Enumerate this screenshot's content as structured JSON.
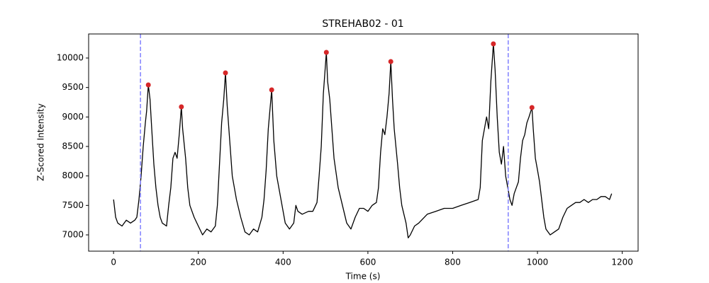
{
  "chart_data": {
    "type": "line",
    "title": "STREHAB02 - 01",
    "xlabel": "Time (s)",
    "ylabel": "Z-Scored Intensity",
    "xlim": [
      -58.8,
      1237.4
    ],
    "ylim": [
      6724,
      10408
    ],
    "xticks": [
      0,
      200,
      400,
      600,
      800,
      1000,
      1200
    ],
    "yticks": [
      7000,
      7500,
      8000,
      8500,
      9000,
      9500,
      10000
    ],
    "color": "#000000",
    "x": [
      0,
      5,
      10,
      20,
      30,
      40,
      50,
      55,
      60,
      65,
      70,
      75,
      78,
      82,
      86,
      90,
      95,
      100,
      105,
      110,
      115,
      125,
      130,
      135,
      140,
      145,
      150,
      155,
      160,
      163,
      170,
      175,
      180,
      190,
      200,
      210,
      220,
      230,
      240,
      245,
      250,
      255,
      260,
      264,
      268,
      275,
      280,
      290,
      300,
      310,
      320,
      330,
      340,
      350,
      355,
      360,
      365,
      373,
      378,
      385,
      395,
      405,
      415,
      425,
      430,
      435,
      445,
      460,
      470,
      480,
      485,
      490,
      495,
      502,
      505,
      510,
      515,
      520,
      530,
      540,
      550,
      560,
      570,
      580,
      590,
      600,
      610,
      620,
      625,
      630,
      635,
      640,
      645,
      650,
      654,
      658,
      662,
      670,
      675,
      680,
      690,
      695,
      700,
      710,
      720,
      740,
      760,
      780,
      800,
      820,
      840,
      860,
      865,
      870,
      875,
      880,
      885,
      890,
      896,
      900,
      905,
      910,
      915,
      920,
      925,
      930,
      935,
      940,
      945,
      950,
      955,
      960,
      965,
      970,
      975,
      980,
      987,
      990,
      995,
      1000,
      1005,
      1010,
      1015,
      1020,
      1030,
      1040,
      1050,
      1060,
      1070,
      1080,
      1090,
      1100,
      1110,
      1120,
      1130,
      1140,
      1150,
      1160,
      1170,
      1175
    ],
    "values": [
      7600,
      7300,
      7200,
      7150,
      7250,
      7200,
      7250,
      7300,
      7600,
      8000,
      8500,
      8900,
      9100,
      9544,
      9300,
      8800,
      8200,
      7800,
      7500,
      7300,
      7200,
      7150,
      7500,
      7800,
      8300,
      8400,
      8300,
      8700,
      9172,
      8800,
      8300,
      7800,
      7500,
      7300,
      7150,
      7000,
      7100,
      7050,
      7150,
      7500,
      8200,
      8900,
      9300,
      9748,
      9200,
      8500,
      8000,
      7600,
      7300,
      7050,
      7000,
      7100,
      7050,
      7300,
      7600,
      8100,
      8800,
      9460,
      8600,
      8000,
      7600,
      7200,
      7100,
      7200,
      7500,
      7400,
      7350,
      7400,
      7400,
      7550,
      8000,
      8500,
      9400,
      10096,
      9600,
      9300,
      8800,
      8300,
      7800,
      7500,
      7200,
      7100,
      7300,
      7450,
      7450,
      7400,
      7500,
      7550,
      7800,
      8400,
      8800,
      8700,
      9000,
      9400,
      9940,
      9300,
      8800,
      8200,
      7800,
      7500,
      7200,
      6950,
      7000,
      7150,
      7200,
      7350,
      7400,
      7450,
      7450,
      7500,
      7550,
      7600,
      7800,
      8600,
      8800,
      9000,
      8800,
      9600,
      10240,
      9800,
      9000,
      8400,
      8200,
      8500,
      8000,
      7800,
      7600,
      7500,
      7700,
      7800,
      7900,
      8300,
      8600,
      8700,
      8900,
      9000,
      9160,
      8800,
      8300,
      8100,
      7900,
      7600,
      7300,
      7100,
      7000,
      7050,
      7100,
      7300,
      7450,
      7500,
      7550,
      7550,
      7600,
      7550,
      7600,
      7600,
      7650,
      7650,
      7600,
      7700
    ],
    "peaks": {
      "color": "#d62728",
      "x": [
        82,
        160,
        264,
        373,
        502,
        654,
        896,
        987
      ],
      "values": [
        9544,
        9172,
        9748,
        9460,
        10096,
        9940,
        10240,
        9160
      ]
    },
    "vlines": {
      "color": "#8080ff",
      "x": [
        63.5,
        931
      ]
    }
  }
}
